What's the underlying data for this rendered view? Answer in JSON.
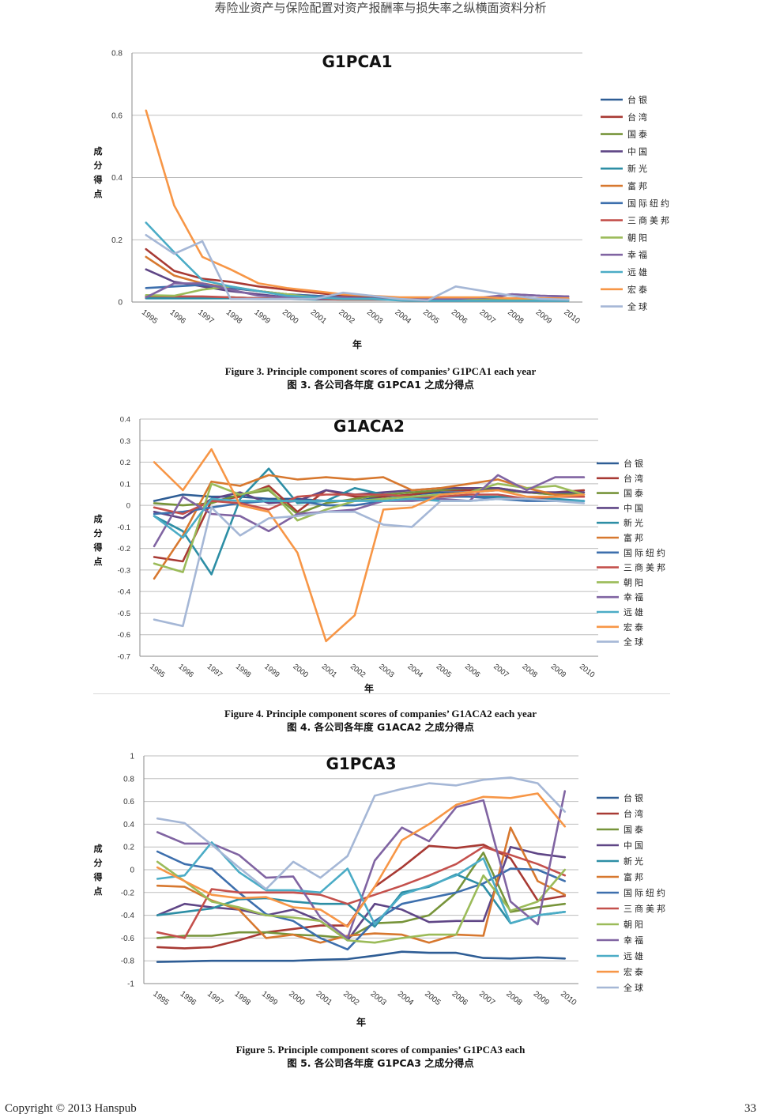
{
  "header": "寿险业资产与保险配置对资产报酬率与损失率之纵横面资料分析",
  "footer": {
    "copyright": "Copyright © 2013 Hanspub",
    "page": "33"
  },
  "series_colors": [
    "#2e5d95",
    "#a83a34",
    "#77943a",
    "#5f4686",
    "#2d8ea5",
    "#d7782f",
    "#3d6fad",
    "#c4504c",
    "#9bbb59",
    "#8064a2",
    "#4bacc6",
    "#f79646",
    "#a5b7d6"
  ],
  "captions": [
    {
      "en": "Figure 3. Principle component scores of companies’ G1PCA1 each year",
      "zh": "图 3. 各公司各年度 G1PCA1 之成分得点"
    },
    {
      "en": "Figure 4. Principle component scores of companies’ G1ACA2 each year",
      "zh": "图 4. 各公司各年度 G1ACA2 之成分得点"
    },
    {
      "en": "Figure 5. Principle component scores of companies’ G1PCA3 each",
      "zh": "图 5. 各公司各年度 G1PCA3 之成分得点"
    }
  ],
  "chart_data": [
    {
      "type": "line",
      "title": "G1PCA1",
      "xlabel": "年",
      "ylabel": "成分得点",
      "ylim": [
        0,
        0.8
      ],
      "yticks": [
        "0",
        "0.2",
        "0.4",
        "0.6",
        "0.8"
      ],
      "categories": [
        "1995",
        "1996",
        "1997",
        "1998",
        "1999",
        "2000",
        "2001",
        "2002",
        "2003",
        "2004",
        "2005",
        "2006",
        "2007",
        "2008",
        "2009",
        "2010"
      ],
      "legend_position": "right",
      "series": [
        {
          "name": "台银",
          "values": [
            0.015,
            0.015,
            0.015,
            0.015,
            0.012,
            0.01,
            0.01,
            0.01,
            0.01,
            0.008,
            0.008,
            0.008,
            0.008,
            0.01,
            0.01,
            0.01
          ]
        },
        {
          "name": "台湾",
          "values": [
            0.17,
            0.1,
            0.075,
            0.065,
            0.05,
            0.04,
            0.03,
            0.02,
            0.015,
            0.012,
            0.01,
            0.01,
            0.01,
            0.01,
            0.01,
            0.01
          ]
        },
        {
          "name": "国泰",
          "values": [
            0.018,
            0.015,
            0.015,
            0.015,
            0.012,
            0.01,
            0.01,
            0.008,
            0.008,
            0.008,
            0.007,
            0.007,
            0.007,
            0.008,
            0.008,
            0.008
          ]
        },
        {
          "name": "中国",
          "values": [
            0.105,
            0.065,
            0.05,
            0.035,
            0.025,
            0.015,
            0.01,
            0.01,
            0.01,
            0.008,
            0.008,
            0.008,
            0.01,
            0.025,
            0.02,
            0.018
          ]
        },
        {
          "name": "新光",
          "values": [
            0.012,
            0.012,
            0.012,
            0.012,
            0.01,
            0.01,
            0.008,
            0.008,
            0.008,
            0.007,
            0.006,
            0.006,
            0.006,
            0.006,
            0.006,
            0.006
          ]
        },
        {
          "name": "富邦",
          "values": [
            0.145,
            0.085,
            0.06,
            0.045,
            0.035,
            0.025,
            0.02,
            0.015,
            0.012,
            0.01,
            0.008,
            0.008,
            0.01,
            0.01,
            0.01,
            0.01
          ]
        },
        {
          "name": "国际纽约",
          "values": [
            0.045,
            0.05,
            0.055,
            0.045,
            0.035,
            0.025,
            0.02,
            0.015,
            0.012,
            0.01,
            0.008,
            0.008,
            0.01,
            0.012,
            0.012,
            0.012
          ]
        },
        {
          "name": "三商美邦",
          "values": [
            0.02,
            0.018,
            0.018,
            0.015,
            0.012,
            0.01,
            0.01,
            0.008,
            0.008,
            0.007,
            0.006,
            0.006,
            0.006,
            0.006,
            0.006,
            0.006
          ]
        },
        {
          "name": "朝阳",
          "values": [
            0.022,
            0.02,
            0.04,
            0.05,
            0.035,
            0.025,
            0.015,
            0.01,
            0.01,
            0.008,
            0.006,
            0.006,
            0.006,
            0.006,
            0.006,
            0.006
          ]
        },
        {
          "name": "幸福",
          "values": [
            0.015,
            0.06,
            0.06,
            0.04,
            0.02,
            0.015,
            0.01,
            0.015,
            0.01,
            0.01,
            0.01,
            0.01,
            0.015,
            0.025,
            0.02,
            0.018
          ]
        },
        {
          "name": "远雄",
          "values": [
            0.255,
            0.16,
            0.07,
            0.05,
            0.035,
            0.02,
            0.015,
            0.01,
            0.01,
            0.005,
            0.004,
            0.004,
            0.004,
            0.004,
            0.004,
            0.004
          ]
        },
        {
          "name": "宏泰",
          "values": [
            0.615,
            0.31,
            0.145,
            0.105,
            0.06,
            0.045,
            0.035,
            0.025,
            0.02,
            0.015,
            0.015,
            0.015,
            0.015,
            0.012,
            0.012,
            0.012
          ]
        },
        {
          "name": "全球",
          "values": [
            0.215,
            0.155,
            0.195,
            0.01,
            0.01,
            0.01,
            0.01,
            0.03,
            0.02,
            0.01,
            0.005,
            0.05,
            0.035,
            0.02,
            0.01,
            0.008
          ]
        }
      ]
    },
    {
      "type": "line",
      "title": "G1ACA2",
      "xlabel": "年",
      "ylabel": "成分得点",
      "ylim": [
        -0.7,
        0.4
      ],
      "yticks": [
        "-0.7",
        "-0.6",
        "-0.5",
        "-0.4",
        "-0.3",
        "-0.2",
        "-0.1",
        "0",
        "0.1",
        "0.2",
        "0.3",
        "0.4"
      ],
      "categories": [
        "1995",
        "1996",
        "1997",
        "1998",
        "1999",
        "2000",
        "2001",
        "2002",
        "2003",
        "2004",
        "2005",
        "2006",
        "2007",
        "2008",
        "2009",
        "2010"
      ],
      "legend_position": "right",
      "series": [
        {
          "name": "台银",
          "values": [
            0.02,
            0.05,
            0.04,
            0.04,
            0.03,
            0.03,
            0.02,
            0.02,
            0.04,
            0.05,
            0.06,
            0.06,
            0.07,
            0.06,
            0.05,
            0.05
          ]
        },
        {
          "name": "台湾",
          "values": [
            -0.24,
            -0.26,
            0.02,
            0.04,
            0.09,
            -0.03,
            0.07,
            0.04,
            0.04,
            0.05,
            0.07,
            0.07,
            0.08,
            0.06,
            0.06,
            0.07
          ]
        },
        {
          "name": "国泰",
          "values": [
            0.01,
            0.0,
            0.01,
            0.05,
            0.07,
            -0.04,
            0.01,
            0.03,
            0.05,
            0.06,
            0.07,
            0.08,
            0.07,
            0.06,
            0.05,
            0.06
          ]
        },
        {
          "name": "中国",
          "values": [
            -0.03,
            -0.06,
            0.03,
            0.06,
            0.01,
            0.02,
            0.07,
            0.05,
            0.06,
            0.07,
            0.08,
            0.08,
            0.08,
            0.06,
            0.06,
            0.06
          ]
        },
        {
          "name": "新光",
          "values": [
            -0.05,
            -0.12,
            -0.32,
            0.03,
            0.17,
            0.01,
            0.02,
            0.08,
            0.05,
            0.03,
            0.04,
            0.04,
            0.04,
            0.03,
            0.03,
            0.02
          ]
        },
        {
          "name": "富邦",
          "values": [
            -0.34,
            -0.14,
            0.11,
            0.09,
            0.14,
            0.12,
            0.13,
            0.12,
            0.13,
            0.07,
            0.08,
            0.1,
            0.12,
            0.08,
            0.05,
            0.04
          ]
        },
        {
          "name": "国际纽约",
          "values": [
            -0.04,
            -0.03,
            -0.01,
            0.01,
            0.02,
            0.02,
            0.0,
            0.0,
            0.02,
            0.03,
            0.04,
            0.04,
            0.03,
            0.02,
            0.02,
            0.02
          ]
        },
        {
          "name": "三商美邦",
          "values": [
            -0.01,
            -0.04,
            0.02,
            0.01,
            -0.02,
            0.04,
            0.05,
            0.05,
            0.05,
            0.04,
            0.04,
            0.05,
            0.05,
            0.03,
            0.04,
            0.04
          ]
        },
        {
          "name": "朝阳",
          "values": [
            -0.27,
            -0.31,
            0.1,
            0.05,
            0.08,
            -0.07,
            -0.02,
            0.02,
            0.03,
            0.04,
            0.05,
            0.06,
            0.1,
            0.08,
            0.09,
            0.05
          ]
        },
        {
          "name": "幸福",
          "values": [
            -0.19,
            0.04,
            -0.04,
            -0.05,
            -0.12,
            -0.04,
            -0.03,
            -0.02,
            0.02,
            0.02,
            0.03,
            0.02,
            0.14,
            0.07,
            0.13,
            0.13
          ]
        },
        {
          "name": "远雄",
          "values": [
            -0.05,
            -0.15,
            0.03,
            0.02,
            0.02,
            0.02,
            0.02,
            0.02,
            0.02,
            0.03,
            0.02,
            0.02,
            0.03,
            0.03,
            0.02,
            0.02
          ]
        },
        {
          "name": "宏泰",
          "values": [
            0.2,
            0.07,
            0.26,
            0.0,
            -0.03,
            -0.22,
            -0.63,
            -0.51,
            -0.02,
            -0.01,
            0.05,
            0.06,
            0.07,
            0.04,
            0.04,
            0.05
          ]
        },
        {
          "name": "全球",
          "values": [
            -0.53,
            -0.56,
            -0.01,
            -0.14,
            -0.06,
            -0.05,
            -0.03,
            -0.03,
            -0.09,
            -0.1,
            0.02,
            0.02,
            0.03,
            0.03,
            0.02,
            0.01
          ]
        }
      ]
    },
    {
      "type": "line",
      "title": "G1PCA3",
      "xlabel": "年",
      "ylabel": "成分得点",
      "ylim": [
        -1,
        1
      ],
      "yticks": [
        "-1",
        "-0.8",
        "-0.6",
        "-0.4",
        "-0.2",
        "0",
        "0.2",
        "0.4",
        "0.6",
        "0.8",
        "1"
      ],
      "categories": [
        "1995",
        "1996",
        "1997",
        "1998",
        "1999",
        "2000",
        "2001",
        "2002",
        "2003",
        "2004",
        "2005",
        "2006",
        "2007",
        "2008",
        "2009",
        "2010"
      ],
      "legend_position": "right",
      "series": [
        {
          "name": "台银",
          "values": [
            -0.81,
            -0.805,
            -0.8,
            -0.8,
            -0.8,
            -0.8,
            -0.79,
            -0.785,
            -0.755,
            -0.72,
            -0.73,
            -0.73,
            -0.775,
            -0.78,
            -0.77,
            -0.78
          ]
        },
        {
          "name": "台湾",
          "values": [
            -0.68,
            -0.69,
            -0.68,
            -0.62,
            -0.55,
            -0.52,
            -0.49,
            -0.49,
            -0.15,
            0.02,
            0.21,
            0.19,
            0.22,
            0.1,
            -0.27,
            -0.23
          ]
        },
        {
          "name": "国泰",
          "values": [
            -0.6,
            -0.58,
            -0.58,
            -0.55,
            -0.55,
            -0.57,
            -0.58,
            -0.6,
            -0.47,
            -0.46,
            -0.4,
            -0.2,
            0.15,
            -0.37,
            -0.33,
            -0.3
          ]
        },
        {
          "name": "中国",
          "values": [
            -0.4,
            -0.3,
            -0.33,
            -0.35,
            -0.4,
            -0.35,
            -0.45,
            -0.62,
            -0.3,
            -0.35,
            -0.46,
            -0.45,
            -0.45,
            0.2,
            0.14,
            0.11
          ]
        },
        {
          "name": "新光",
          "values": [
            -0.4,
            -0.37,
            -0.34,
            -0.26,
            -0.25,
            -0.28,
            -0.3,
            -0.3,
            -0.5,
            -0.2,
            -0.15,
            -0.04,
            -0.14,
            -0.47,
            -0.4,
            -0.37
          ]
        },
        {
          "name": "富邦",
          "values": [
            -0.14,
            -0.15,
            -0.27,
            -0.35,
            -0.6,
            -0.57,
            -0.64,
            -0.58,
            -0.56,
            -0.57,
            -0.64,
            -0.57,
            -0.58,
            0.37,
            -0.1,
            -0.22
          ]
        },
        {
          "name": "国际纽约",
          "values": [
            0.16,
            0.05,
            0.01,
            -0.2,
            -0.39,
            -0.45,
            -0.6,
            -0.7,
            -0.45,
            -0.3,
            -0.25,
            -0.2,
            -0.12,
            0.01,
            0.0,
            -0.1
          ]
        },
        {
          "name": "三商美邦",
          "values": [
            -0.55,
            -0.6,
            -0.17,
            -0.2,
            -0.2,
            -0.2,
            -0.22,
            -0.3,
            -0.22,
            -0.14,
            -0.05,
            0.05,
            0.2,
            0.13,
            0.05,
            -0.05
          ]
        },
        {
          "name": "朝阳",
          "values": [
            0.07,
            -0.1,
            -0.28,
            -0.33,
            -0.4,
            -0.42,
            -0.45,
            -0.62,
            -0.64,
            -0.6,
            -0.57,
            -0.57,
            -0.05,
            -0.36,
            -0.28,
            0.0
          ]
        },
        {
          "name": "幸福",
          "values": [
            0.33,
            0.23,
            0.23,
            0.13,
            -0.07,
            -0.06,
            -0.42,
            -0.6,
            0.08,
            0.37,
            0.25,
            0.55,
            0.61,
            -0.28,
            -0.48,
            0.69
          ]
        },
        {
          "name": "远雄",
          "values": [
            -0.08,
            -0.05,
            0.24,
            -0.02,
            -0.18,
            -0.18,
            -0.2,
            0.01,
            -0.48,
            -0.22,
            -0.14,
            -0.05,
            0.1,
            -0.47,
            -0.4,
            -0.37
          ]
        },
        {
          "name": "宏泰",
          "values": [
            0.02,
            -0.1,
            -0.22,
            -0.25,
            -0.24,
            -0.33,
            -0.35,
            -0.5,
            -0.15,
            0.26,
            0.4,
            0.57,
            0.64,
            0.63,
            0.67,
            0.38
          ]
        },
        {
          "name": "全球",
          "values": [
            0.45,
            0.41,
            0.22,
            0.02,
            -0.17,
            0.07,
            -0.07,
            0.12,
            0.65,
            0.71,
            0.76,
            0.74,
            0.79,
            0.81,
            0.76,
            0.51
          ]
        }
      ]
    }
  ]
}
